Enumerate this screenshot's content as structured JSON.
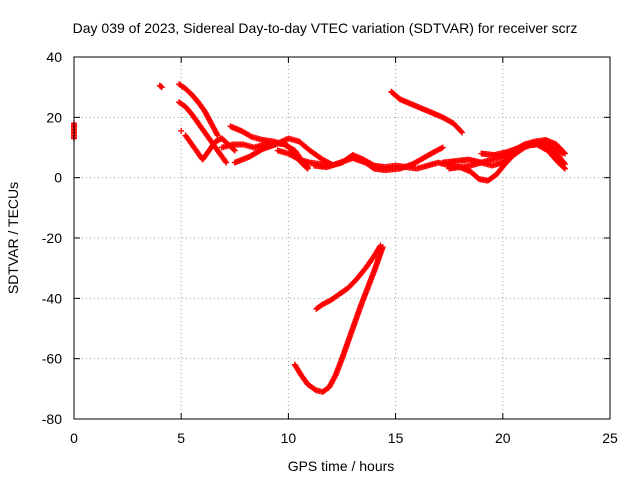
{
  "chart_data": {
    "type": "scatter",
    "title": "Day 039 of 2023, Sidereal Day-to-day VTEC variation (SDTVAR) for receiver scrz",
    "xlabel": "GPS time / hours",
    "ylabel": "SDTVAR / TECUs",
    "xlim": [
      0,
      25
    ],
    "ylim": [
      -80,
      40
    ],
    "xticks": [
      0,
      5,
      10,
      15,
      20,
      25
    ],
    "yticks": [
      -80,
      -60,
      -40,
      -20,
      0,
      20,
      40
    ],
    "grid": true,
    "marker": "+",
    "color": "#ff0000",
    "series": [
      {
        "name": "start-marks",
        "points": [
          [
            0.0,
            13
          ],
          [
            0.0,
            15
          ],
          [
            0.0,
            16.5
          ],
          [
            0.0,
            18
          ]
        ]
      },
      {
        "name": "isolated-a",
        "points": [
          [
            4.0,
            30.5
          ],
          [
            4.1,
            30
          ],
          [
            5.0,
            15.5
          ]
        ]
      },
      {
        "name": "trace-high-left",
        "points": [
          [
            4.9,
            31
          ],
          [
            5.2,
            29.5
          ],
          [
            5.5,
            27.5
          ],
          [
            5.8,
            25
          ],
          [
            6.1,
            22
          ],
          [
            6.4,
            18
          ],
          [
            6.7,
            14
          ]
        ]
      },
      {
        "name": "trace-high-left-b",
        "points": [
          [
            4.9,
            25
          ],
          [
            5.2,
            23.5
          ],
          [
            5.5,
            21
          ],
          [
            5.8,
            18
          ],
          [
            6.1,
            15
          ],
          [
            6.4,
            12
          ],
          [
            6.8,
            8
          ],
          [
            7.1,
            5
          ]
        ]
      },
      {
        "name": "trace-drop",
        "points": [
          [
            5.2,
            14
          ],
          [
            5.5,
            11
          ],
          [
            5.8,
            8
          ],
          [
            6.0,
            6
          ],
          [
            6.3,
            9
          ],
          [
            6.6,
            12
          ],
          [
            6.9,
            13
          ],
          [
            7.2,
            11
          ],
          [
            7.5,
            9
          ]
        ]
      },
      {
        "name": "trace-mid-a",
        "points": [
          [
            7.3,
            17
          ],
          [
            7.8,
            15.5
          ],
          [
            8.3,
            13.5
          ],
          [
            8.8,
            12.5
          ],
          [
            9.3,
            12
          ],
          [
            9.8,
            11
          ],
          [
            10.3,
            9
          ],
          [
            10.6,
            6
          ],
          [
            10.9,
            3.5
          ]
        ]
      },
      {
        "name": "trace-mid-b",
        "points": [
          [
            6.9,
            10
          ],
          [
            7.4,
            11
          ],
          [
            7.9,
            11
          ],
          [
            8.4,
            10
          ],
          [
            8.9,
            11
          ],
          [
            9.4,
            11.5
          ],
          [
            9.9,
            11
          ],
          [
            10.3,
            8
          ],
          [
            10.6,
            5
          ],
          [
            10.9,
            3
          ]
        ]
      },
      {
        "name": "trace-mid-c",
        "points": [
          [
            7.5,
            5
          ],
          [
            8.2,
            7
          ],
          [
            8.8,
            9.5
          ],
          [
            9.4,
            11
          ],
          [
            10.0,
            13
          ],
          [
            10.5,
            12
          ],
          [
            11.0,
            9
          ],
          [
            11.6,
            6
          ],
          [
            12.0,
            4.5
          ]
        ]
      },
      {
        "name": "trace-wave",
        "points": [
          [
            9.5,
            9
          ],
          [
            10.0,
            8
          ],
          [
            10.5,
            6
          ],
          [
            11.0,
            5
          ],
          [
            11.5,
            4.5
          ],
          [
            12.0,
            4
          ],
          [
            12.5,
            5
          ],
          [
            13.0,
            7.5
          ],
          [
            13.5,
            6
          ],
          [
            14.0,
            4
          ],
          [
            14.5,
            3.5
          ],
          [
            15.0,
            4
          ],
          [
            15.5,
            3.5
          ],
          [
            16.0,
            3
          ],
          [
            16.5,
            4
          ],
          [
            17.0,
            5
          ],
          [
            17.5,
            4
          ],
          [
            18.0,
            3.5
          ],
          [
            18.5,
            4
          ],
          [
            19.0,
            5
          ],
          [
            19.5,
            6
          ],
          [
            20.0,
            7
          ],
          [
            20.5,
            9
          ],
          [
            21.0,
            11
          ],
          [
            21.5,
            12
          ],
          [
            22.0,
            12.5
          ],
          [
            22.5,
            11
          ],
          [
            22.9,
            8
          ]
        ]
      },
      {
        "name": "trace-low-wave",
        "points": [
          [
            11.2,
            4
          ],
          [
            11.8,
            3.5
          ],
          [
            12.4,
            5
          ],
          [
            13.0,
            6.5
          ],
          [
            13.6,
            5
          ],
          [
            14.0,
            3
          ],
          [
            14.5,
            2.5
          ],
          [
            15.2,
            3
          ],
          [
            15.8,
            4.5
          ],
          [
            16.3,
            6.5
          ],
          [
            16.8,
            8.5
          ],
          [
            17.2,
            10
          ]
        ]
      },
      {
        "name": "trace-tail",
        "points": [
          [
            17.5,
            3
          ],
          [
            18.0,
            3.5
          ],
          [
            18.5,
            2
          ],
          [
            18.9,
            -0.5
          ],
          [
            19.3,
            -1
          ],
          [
            19.7,
            1
          ],
          [
            20.1,
            4.5
          ],
          [
            20.5,
            7.5
          ],
          [
            21.0,
            10
          ],
          [
            21.5,
            11.5
          ],
          [
            22.0,
            12
          ],
          [
            22.4,
            10.5
          ],
          [
            22.8,
            8
          ]
        ]
      },
      {
        "name": "trace-tail-b",
        "points": [
          [
            17.2,
            5
          ],
          [
            17.8,
            5.5
          ],
          [
            18.4,
            6
          ],
          [
            19.0,
            5
          ],
          [
            19.5,
            4
          ],
          [
            20.0,
            5
          ],
          [
            20.5,
            8
          ],
          [
            21.0,
            10.5
          ],
          [
            21.6,
            11
          ],
          [
            22.1,
            9
          ],
          [
            22.6,
            5
          ],
          [
            22.9,
            3
          ]
        ]
      },
      {
        "name": "trace-tail-c",
        "points": [
          [
            19.0,
            8
          ],
          [
            19.6,
            7.5
          ],
          [
            20.2,
            8.5
          ],
          [
            20.8,
            10
          ],
          [
            21.4,
            11.5
          ],
          [
            22.0,
            11
          ],
          [
            22.5,
            8
          ],
          [
            22.9,
            4.5
          ]
        ]
      },
      {
        "name": "trace-upper-right",
        "points": [
          [
            14.8,
            28.5
          ],
          [
            15.2,
            26
          ],
          [
            15.7,
            24.5
          ],
          [
            16.2,
            23
          ],
          [
            16.7,
            21.5
          ],
          [
            17.2,
            20
          ],
          [
            17.7,
            18
          ],
          [
            18.1,
            15
          ]
        ]
      },
      {
        "name": "dip-right",
        "points": [
          [
            14.3,
            -22.5
          ],
          [
            14.0,
            -26
          ],
          [
            13.6,
            -30
          ],
          [
            13.2,
            -33.5
          ],
          [
            12.8,
            -36.5
          ],
          [
            12.4,
            -38.5
          ],
          [
            12.0,
            -40.5
          ],
          [
            11.6,
            -42
          ],
          [
            11.3,
            -43.5
          ]
        ]
      },
      {
        "name": "dip-main",
        "points": [
          [
            10.3,
            -62
          ],
          [
            10.6,
            -65.5
          ],
          [
            10.9,
            -68.5
          ],
          [
            11.3,
            -70.5
          ],
          [
            11.6,
            -71
          ],
          [
            11.9,
            -69.5
          ],
          [
            12.2,
            -65.5
          ],
          [
            12.5,
            -60
          ],
          [
            12.8,
            -54
          ],
          [
            13.1,
            -48
          ],
          [
            13.4,
            -42
          ],
          [
            13.7,
            -36.5
          ],
          [
            14.0,
            -31
          ],
          [
            14.2,
            -27
          ],
          [
            14.4,
            -23
          ]
        ]
      }
    ]
  }
}
